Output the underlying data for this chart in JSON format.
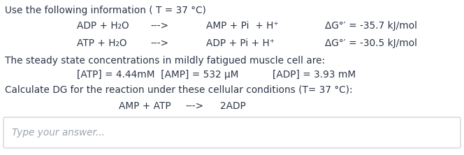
{
  "title_line": "Use the following information ( T = 37 °C)",
  "rxn1_left": "ADP + H₂O",
  "rxn1_arrow": "--->",
  "rxn1_right": "AMP + Pi  + H⁺",
  "rxn1_dg": "ΔG°′ = -35.7 kJ/mol",
  "rxn2_left": "ATP + H₂O",
  "rxn2_arrow": "--->",
  "rxn2_right": "ADP + Pi + H⁺",
  "rxn2_dg": "ΔG°′ = -30.5 kJ/mol",
  "steady_line": "The steady state concentrations in mildly fatigued muscle cell are:",
  "conc1": "[ATP] = 4.44mM  [AMP] = 532 μM",
  "conc2": "[ADP] = 3.93 mM",
  "calc_line": "Calculate DG for the reaction under these cellular conditions (T= 37 °C):",
  "rxn3_left": "AMP + ATP",
  "rxn3_arrow": "--->",
  "rxn3_right": "2ADP",
  "placeholder": "Type your answer...",
  "bg_color": "#ffffff",
  "text_color": "#2d3748",
  "placeholder_color": "#9ca3af",
  "border_color": "#d1d5db",
  "font_size": 9.8,
  "fig_width": 6.64,
  "fig_height": 2.22,
  "dpi": 100
}
